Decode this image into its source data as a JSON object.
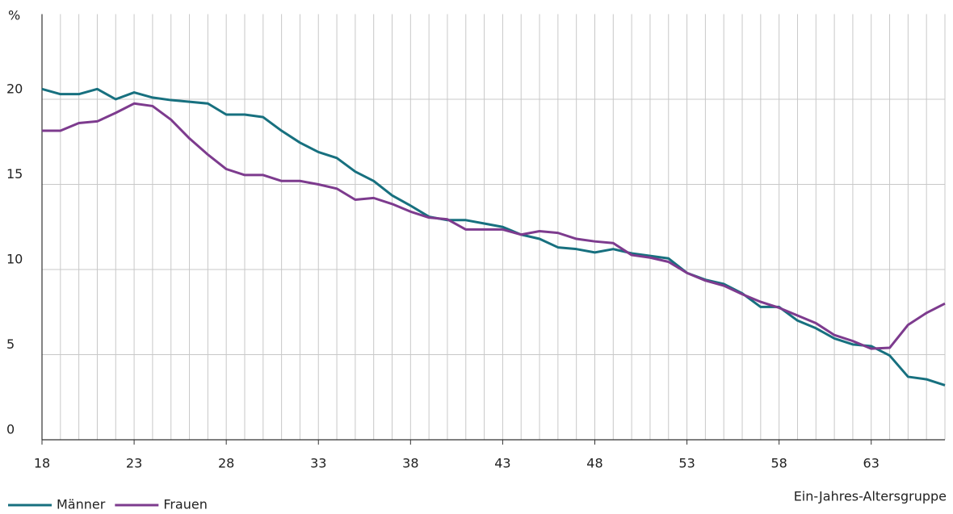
{
  "chart_data": {
    "type": "line",
    "y_label": "%",
    "x_label": "Ein-Jahres-Altersgruppe",
    "x": [
      18,
      19,
      20,
      21,
      22,
      23,
      24,
      25,
      26,
      27,
      28,
      29,
      30,
      31,
      32,
      33,
      34,
      35,
      36,
      37,
      38,
      39,
      40,
      41,
      42,
      43,
      44,
      45,
      46,
      47,
      48,
      49,
      50,
      51,
      52,
      53,
      54,
      55,
      56,
      57,
      58,
      59,
      60,
      61,
      62,
      63,
      64,
      65,
      66,
      67
    ],
    "series": [
      {
        "name": "Männer",
        "color": "#17707f",
        "values": [
          20.6,
          20.3,
          20.3,
          20.6,
          20.0,
          20.4,
          20.1,
          19.95,
          19.85,
          19.75,
          19.1,
          19.1,
          18.95,
          18.15,
          17.45,
          16.9,
          16.55,
          15.75,
          15.2,
          14.35,
          13.75,
          13.1,
          12.9,
          12.9,
          12.7,
          12.5,
          12.05,
          11.8,
          11.3,
          11.2,
          11.0,
          11.2,
          10.95,
          10.8,
          10.65,
          9.8,
          9.4,
          9.15,
          8.6,
          7.8,
          7.8,
          7.0,
          6.55,
          5.95,
          5.6,
          5.5,
          4.95,
          3.7,
          3.55,
          3.2
        ]
      },
      {
        "name": "Frauen",
        "color": "#7d3b8e",
        "values": [
          18.15,
          18.15,
          18.6,
          18.7,
          19.2,
          19.75,
          19.6,
          18.8,
          17.7,
          16.75,
          15.9,
          15.55,
          15.55,
          15.2,
          15.2,
          15.0,
          14.75,
          14.1,
          14.2,
          13.85,
          13.4,
          13.05,
          12.95,
          12.35,
          12.35,
          12.35,
          12.05,
          12.25,
          12.15,
          11.8,
          11.65,
          11.55,
          10.85,
          10.7,
          10.45,
          9.8,
          9.35,
          9.05,
          8.55,
          8.1,
          7.75,
          7.3,
          6.85,
          6.15,
          5.8,
          5.35,
          5.4,
          6.75,
          7.45,
          8.0
        ]
      }
    ],
    "xlim": [
      18,
      67
    ],
    "xticks": [
      18,
      23,
      28,
      33,
      38,
      43,
      48,
      53,
      58,
      63
    ],
    "ylim": [
      0,
      25
    ],
    "yticks": [
      0,
      5,
      10,
      15,
      20
    ],
    "grid": true,
    "legend": "bottom-left"
  }
}
